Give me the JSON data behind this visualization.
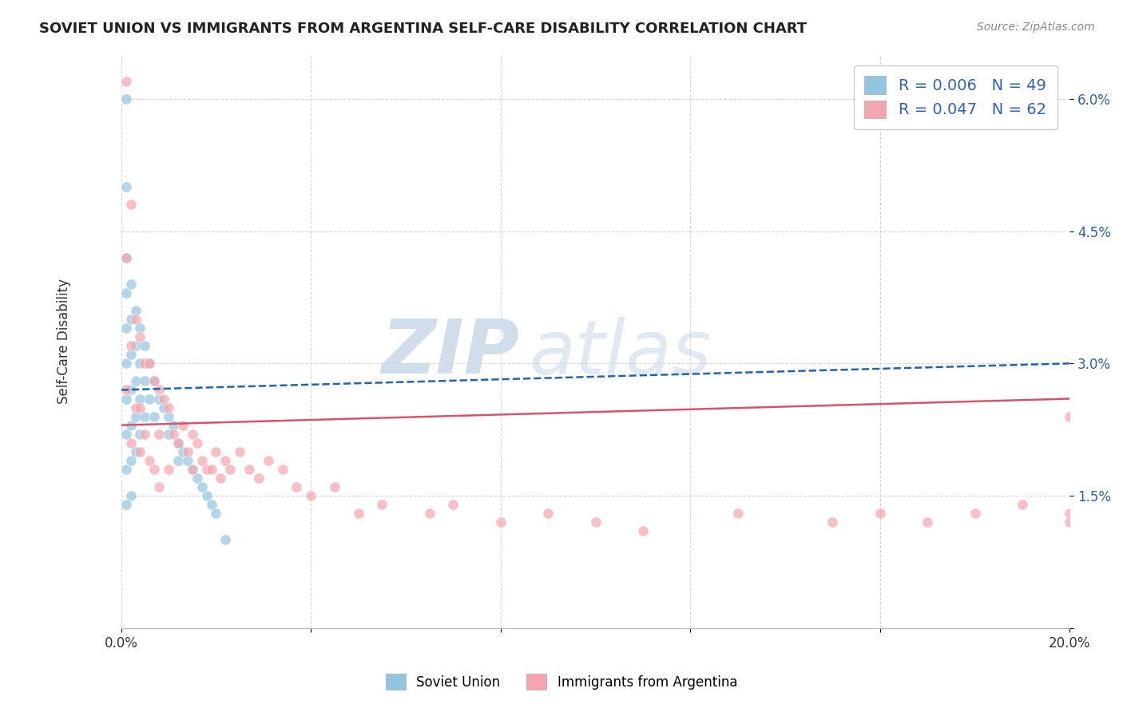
{
  "title": "SOVIET UNION VS IMMIGRANTS FROM ARGENTINA SELF-CARE DISABILITY CORRELATION CHART",
  "source": "Source: ZipAtlas.com",
  "ylabel": "Self-Care Disability",
  "xlim": [
    0.0,
    0.2
  ],
  "ylim": [
    0.0,
    0.065
  ],
  "ytick_vals": [
    0.0,
    0.015,
    0.03,
    0.045,
    0.06
  ],
  "ytick_labels": [
    "",
    "1.5%",
    "3.0%",
    "4.5%",
    "6.0%"
  ],
  "xtick_vals": [
    0.0,
    0.04,
    0.08,
    0.12,
    0.16,
    0.2
  ],
  "xtick_labels": [
    "0.0%",
    "",
    "",
    "",
    "",
    "20.0%"
  ],
  "blue_color": "#92c5de",
  "pink_color": "#f4a6b0",
  "blue_line_color": "#2166ac",
  "pink_line_color": "#d6546e",
  "blue_line_x": [
    0.0,
    0.2
  ],
  "blue_line_y": [
    0.027,
    0.03
  ],
  "pink_line_x": [
    0.0,
    0.2
  ],
  "pink_line_y": [
    0.023,
    0.026
  ],
  "watermark_zip": "ZIP",
  "watermark_atlas": "atlas",
  "su_x": [
    0.001,
    0.001,
    0.001,
    0.001,
    0.001,
    0.001,
    0.001,
    0.001,
    0.001,
    0.001,
    0.002,
    0.002,
    0.002,
    0.002,
    0.002,
    0.002,
    0.002,
    0.003,
    0.003,
    0.003,
    0.003,
    0.003,
    0.004,
    0.004,
    0.004,
    0.004,
    0.005,
    0.005,
    0.005,
    0.006,
    0.006,
    0.007,
    0.007,
    0.008,
    0.009,
    0.01,
    0.01,
    0.011,
    0.012,
    0.012,
    0.013,
    0.014,
    0.015,
    0.016,
    0.017,
    0.018,
    0.019,
    0.02,
    0.022
  ],
  "su_y": [
    0.06,
    0.05,
    0.042,
    0.038,
    0.034,
    0.03,
    0.026,
    0.022,
    0.018,
    0.014,
    0.039,
    0.035,
    0.031,
    0.027,
    0.023,
    0.019,
    0.015,
    0.036,
    0.032,
    0.028,
    0.024,
    0.02,
    0.034,
    0.03,
    0.026,
    0.022,
    0.032,
    0.028,
    0.024,
    0.03,
    0.026,
    0.028,
    0.024,
    0.026,
    0.025,
    0.024,
    0.022,
    0.023,
    0.021,
    0.019,
    0.02,
    0.019,
    0.018,
    0.017,
    0.016,
    0.015,
    0.014,
    0.013,
    0.01
  ],
  "arg_x": [
    0.001,
    0.001,
    0.001,
    0.002,
    0.002,
    0.002,
    0.003,
    0.003,
    0.004,
    0.004,
    0.004,
    0.005,
    0.005,
    0.006,
    0.006,
    0.007,
    0.007,
    0.008,
    0.008,
    0.008,
    0.009,
    0.01,
    0.01,
    0.011,
    0.012,
    0.013,
    0.014,
    0.015,
    0.015,
    0.016,
    0.017,
    0.018,
    0.019,
    0.02,
    0.021,
    0.022,
    0.023,
    0.025,
    0.027,
    0.029,
    0.031,
    0.034,
    0.037,
    0.04,
    0.045,
    0.05,
    0.055,
    0.065,
    0.07,
    0.08,
    0.09,
    0.1,
    0.11,
    0.13,
    0.15,
    0.16,
    0.17,
    0.18,
    0.19,
    0.2,
    0.2,
    0.2
  ],
  "arg_y": [
    0.062,
    0.042,
    0.027,
    0.048,
    0.032,
    0.021,
    0.035,
    0.025,
    0.033,
    0.025,
    0.02,
    0.03,
    0.022,
    0.03,
    0.019,
    0.028,
    0.018,
    0.027,
    0.022,
    0.016,
    0.026,
    0.025,
    0.018,
    0.022,
    0.021,
    0.023,
    0.02,
    0.022,
    0.018,
    0.021,
    0.019,
    0.018,
    0.018,
    0.02,
    0.017,
    0.019,
    0.018,
    0.02,
    0.018,
    0.017,
    0.019,
    0.018,
    0.016,
    0.015,
    0.016,
    0.013,
    0.014,
    0.013,
    0.014,
    0.012,
    0.013,
    0.012,
    0.011,
    0.013,
    0.012,
    0.013,
    0.012,
    0.013,
    0.014,
    0.024,
    0.013,
    0.012
  ]
}
